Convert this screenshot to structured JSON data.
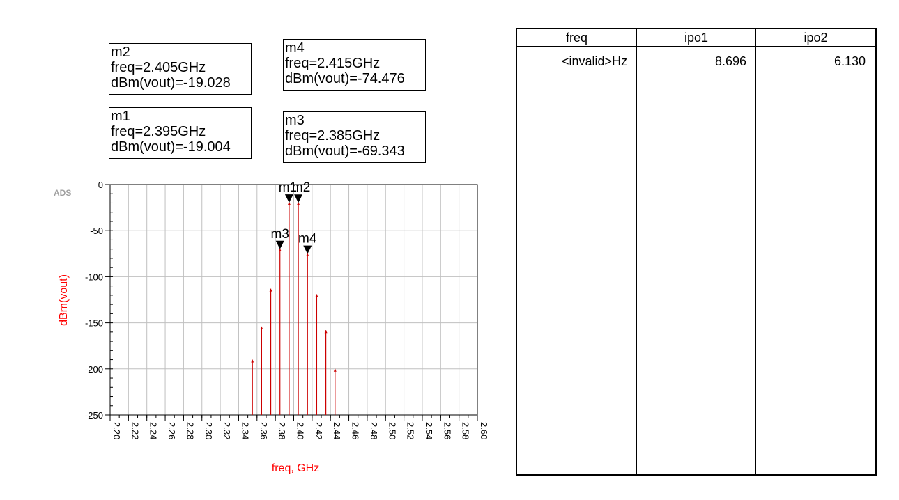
{
  "markers": [
    {
      "id": "m2",
      "lines": [
        "m2",
        "freq=2.405GHz",
        "dBm(vout)=-19.028"
      ]
    },
    {
      "id": "m4",
      "lines": [
        "m4",
        "freq=2.415GHz",
        "dBm(vout)=-74.476"
      ]
    },
    {
      "id": "m1",
      "lines": [
        "m1",
        "freq=2.395GHz",
        "dBm(vout)=-19.004"
      ]
    },
    {
      "id": "m3",
      "lines": [
        "m3",
        "freq=2.385GHz",
        "dBm(vout)=-69.343"
      ]
    }
  ],
  "watermark": "ADS",
  "chart_data": {
    "type": "bar",
    "style": "stem",
    "xlabel": "freq, GHz",
    "ylabel": "dBm(vout)",
    "xlim": [
      2.2,
      2.6
    ],
    "ylim": [
      -250,
      0
    ],
    "x_ticks": [
      "2.20",
      "2.22",
      "2.24",
      "2.26",
      "2.28",
      "2.30",
      "2.32",
      "2.34",
      "2.36",
      "2.38",
      "2.40",
      "2.42",
      "2.44",
      "2.46",
      "2.48",
      "2.50",
      "2.52",
      "2.54",
      "2.56",
      "2.58",
      "2.60"
    ],
    "y_ticks": [
      "0",
      "-50",
      "-100",
      "-150",
      "-200",
      "-250"
    ],
    "grid": true,
    "series": [
      {
        "x": [
          2.355,
          2.365,
          2.375,
          2.385,
          2.395,
          2.405,
          2.415,
          2.425,
          2.435,
          2.445
        ],
        "values": [
          -190,
          -154,
          -113,
          -69.343,
          -19.004,
          -19.028,
          -74.476,
          -119,
          -158,
          -200
        ]
      }
    ],
    "marker_labels": [
      {
        "name": "m1",
        "x": 2.395,
        "y": -19.004
      },
      {
        "name": "m2",
        "x": 2.405,
        "y": -19.028
      },
      {
        "name": "m3",
        "x": 2.385,
        "y": -69.343
      },
      {
        "name": "m4",
        "x": 2.415,
        "y": -74.476
      }
    ],
    "colors": {
      "trace": "#cc0000",
      "axis_label": "#ff0000",
      "grid": "#c0c0c0"
    }
  },
  "table": {
    "headers": [
      "freq",
      "ipo1",
      "ipo2"
    ],
    "rows": [
      [
        "<invalid>Hz",
        "8.696",
        "6.130"
      ]
    ]
  }
}
